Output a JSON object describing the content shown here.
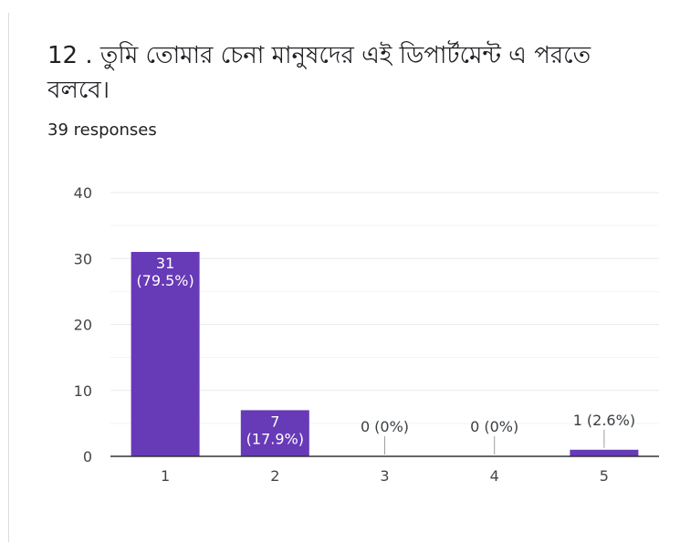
{
  "question": {
    "title": "12 . তুমি তোমার চেনা মানুষদের এই ডিপার্টমেন্ট এ পরতে বলবে।",
    "responses": "39 responses"
  },
  "colors": {
    "bar": "#673ab7",
    "bar_label": "#ffffff",
    "outside_label": "#3c4043",
    "grid": "#e8eaed",
    "axis": "#333333",
    "tick_text": "#444444"
  },
  "chart_data": {
    "type": "bar",
    "categories": [
      "1",
      "2",
      "3",
      "4",
      "5"
    ],
    "values": [
      31,
      7,
      0,
      0,
      1
    ],
    "value_labels": [
      "31",
      "7",
      "0",
      "0",
      "1"
    ],
    "percent_labels": [
      "(79.5%)",
      "(17.9%)",
      "(0%)",
      "(0%)",
      "(2.6%)"
    ],
    "ylim": [
      0,
      40
    ],
    "yticks": [
      0,
      10,
      20,
      30,
      40
    ],
    "grid": true
  }
}
